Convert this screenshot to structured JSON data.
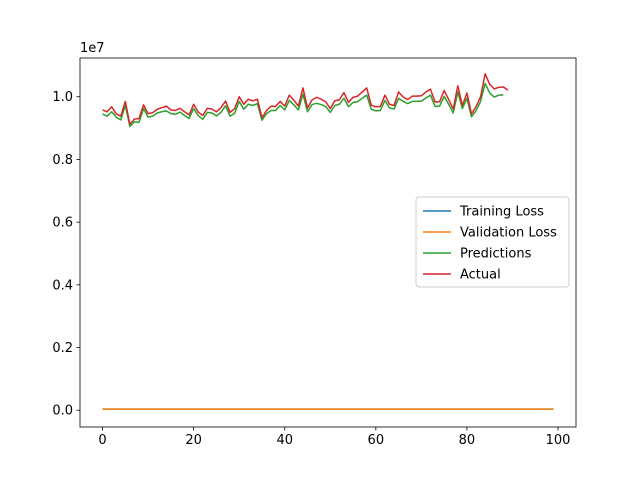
{
  "chart_data": {
    "type": "line",
    "title": "",
    "xlabel": "",
    "ylabel": "",
    "offset_label": "1e7",
    "xlim": [
      -4.95,
      103.95
    ],
    "ylim": [
      -535000,
      11235000
    ],
    "xticks": [
      0,
      20,
      40,
      60,
      80,
      100
    ],
    "xtick_labels": [
      "0",
      "20",
      "40",
      "60",
      "80",
      "100"
    ],
    "yticks": [
      0,
      2000000,
      4000000,
      6000000,
      8000000,
      10000000
    ],
    "ytick_labels": [
      "0.0",
      "0.2",
      "0.4",
      "0.6",
      "0.8",
      "1.0"
    ],
    "grid": false,
    "legend_position": "center-right",
    "series": [
      {
        "name": "Training Loss",
        "color": "#1f77b4",
        "x_start": 0,
        "values": [
          35000,
          35000,
          35000,
          35000,
          35000,
          35000,
          35000,
          35000,
          35000,
          35000,
          35000,
          35000,
          35000,
          35000,
          35000,
          35000,
          35000,
          35000,
          35000,
          35000,
          35000,
          35000,
          35000,
          35000,
          35000,
          35000,
          35000,
          35000,
          35000,
          35000,
          35000,
          35000,
          35000,
          35000,
          35000,
          35000,
          35000,
          35000,
          35000,
          35000,
          35000,
          35000,
          35000,
          35000,
          35000,
          35000,
          35000,
          35000,
          35000,
          35000,
          35000,
          35000,
          35000,
          35000,
          35000,
          35000,
          35000,
          35000,
          35000,
          35000,
          35000,
          35000,
          35000,
          35000,
          35000,
          35000,
          35000,
          35000,
          35000,
          35000,
          35000,
          35000,
          35000,
          35000,
          35000,
          35000,
          35000,
          35000,
          35000,
          35000,
          35000,
          35000,
          35000,
          35000,
          35000,
          35000,
          35000,
          35000,
          35000,
          35000,
          35000,
          35000,
          35000,
          35000,
          35000,
          35000,
          35000,
          35000,
          35000,
          35000
        ]
      },
      {
        "name": "Validation Loss",
        "color": "#ff7f0e",
        "x_start": 0,
        "values": [
          35000,
          35000,
          35000,
          35000,
          35000,
          35000,
          35000,
          35000,
          35000,
          35000,
          35000,
          35000,
          35000,
          35000,
          35000,
          35000,
          35000,
          35000,
          35000,
          35000,
          35000,
          35000,
          35000,
          35000,
          35000,
          35000,
          35000,
          35000,
          35000,
          35000,
          35000,
          35000,
          35000,
          35000,
          35000,
          35000,
          35000,
          35000,
          35000,
          35000,
          35000,
          35000,
          35000,
          35000,
          35000,
          35000,
          35000,
          35000,
          35000,
          35000,
          35000,
          35000,
          35000,
          35000,
          35000,
          35000,
          35000,
          35000,
          35000,
          35000,
          35000,
          35000,
          35000,
          35000,
          35000,
          35000,
          35000,
          35000,
          35000,
          35000,
          35000,
          35000,
          35000,
          35000,
          35000,
          35000,
          35000,
          35000,
          35000,
          35000,
          35000,
          35000,
          35000,
          35000,
          35000,
          35000,
          35000,
          35000,
          35000,
          35000,
          35000,
          35000,
          35000,
          35000,
          35000,
          35000,
          35000,
          35000,
          35000,
          35000
        ]
      },
      {
        "name": "Predictions",
        "color": "#2ca02c",
        "x_start": 0,
        "values": [
          9450000,
          9380000,
          9520000,
          9350000,
          9260000,
          9720000,
          9050000,
          9200000,
          9180000,
          9620000,
          9350000,
          9380000,
          9480000,
          9520000,
          9550000,
          9460000,
          9440000,
          9510000,
          9400000,
          9310000,
          9620000,
          9400000,
          9280000,
          9500000,
          9480000,
          9390000,
          9500000,
          9710000,
          9380000,
          9470000,
          9850000,
          9600000,
          9760000,
          9720000,
          9780000,
          9250000,
          9460000,
          9560000,
          9560000,
          9720000,
          9580000,
          9880000,
          9740000,
          9580000,
          10080000,
          9520000,
          9750000,
          9790000,
          9750000,
          9690000,
          9500000,
          9720000,
          9760000,
          9950000,
          9680000,
          9820000,
          9840000,
          9950000,
          10050000,
          9600000,
          9550000,
          9560000,
          9880000,
          9640000,
          9610000,
          9950000,
          9850000,
          9780000,
          9850000,
          9850000,
          9860000,
          9960000,
          10050000,
          9690000,
          9700000,
          10010000,
          9760000,
          9480000,
          10150000,
          9620000,
          9950000,
          9360000,
          9550000,
          9850000,
          10420000,
          10120000,
          9990000,
          10050000,
          10060000
        ]
      },
      {
        "name": "Actual",
        "color": "#d62728",
        "x_start": 0,
        "values": [
          9580000,
          9520000,
          9680000,
          9450000,
          9380000,
          9850000,
          9120000,
          9290000,
          9300000,
          9740000,
          9460000,
          9490000,
          9600000,
          9650000,
          9700000,
          9580000,
          9560000,
          9630000,
          9520000,
          9420000,
          9760000,
          9510000,
          9400000,
          9630000,
          9610000,
          9520000,
          9650000,
          9860000,
          9500000,
          9620000,
          10000000,
          9760000,
          9920000,
          9870000,
          9920000,
          9330000,
          9560000,
          9700000,
          9690000,
          9850000,
          9700000,
          10050000,
          9890000,
          9700000,
          10280000,
          9640000,
          9900000,
          9980000,
          9920000,
          9840000,
          9620000,
          9870000,
          9900000,
          10130000,
          9820000,
          9980000,
          10020000,
          10150000,
          10280000,
          9730000,
          9680000,
          9690000,
          10050000,
          9760000,
          9720000,
          10150000,
          9990000,
          9910000,
          10020000,
          10020000,
          10030000,
          10150000,
          10240000,
          9830000,
          9840000,
          10200000,
          9910000,
          9610000,
          10350000,
          9720000,
          10120000,
          9450000,
          9680000,
          10000000,
          10730000,
          10400000,
          10250000,
          10300000,
          10310000,
          10210000
        ]
      }
    ]
  }
}
